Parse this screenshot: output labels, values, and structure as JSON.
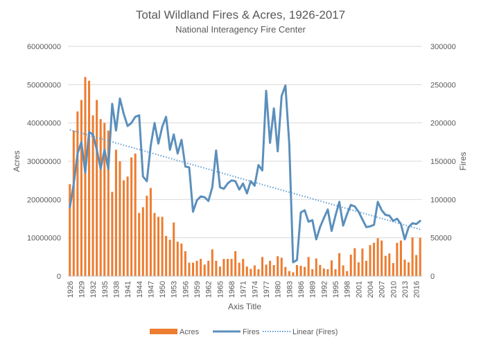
{
  "chart_data": {
    "type": "bar",
    "title": "Total Wildland Fires & Acres, 1926-2017",
    "subtitle": "National Interagency Fire Center",
    "xlabel": "Axis Title",
    "ylabel": "Acres",
    "y2label": "Fires",
    "ylim": [
      0,
      60000000
    ],
    "y2lim": [
      0,
      300000
    ],
    "y_ticks": [
      "0",
      "10000000",
      "20000000",
      "30000000",
      "40000000",
      "50000000",
      "60000000"
    ],
    "y2_ticks": [
      "0",
      "50000",
      "100000",
      "150000",
      "200000",
      "250000",
      "300000"
    ],
    "x_tick_labels": [
      "1926",
      "1929",
      "1932",
      "1935",
      "1938",
      "1941",
      "1944",
      "1947",
      "1950",
      "1953",
      "1956",
      "1959",
      "1962",
      "1965",
      "1968",
      "1971",
      "1974",
      "1977",
      "1980",
      "1983",
      "1986",
      "1989",
      "1992",
      "1995",
      "1998",
      "2001",
      "2004",
      "2007",
      "2010",
      "2013",
      "2016"
    ],
    "grid": true,
    "legend_position": "bottom",
    "colors": {
      "acres": "#ed7d31",
      "fires": "#5b8fbc",
      "trend": "#5b9bd5",
      "grid": "#d9d9d9",
      "text": "#595959"
    },
    "x": [
      1926,
      1927,
      1928,
      1929,
      1930,
      1931,
      1932,
      1933,
      1934,
      1935,
      1936,
      1937,
      1938,
      1939,
      1940,
      1941,
      1942,
      1943,
      1944,
      1945,
      1946,
      1947,
      1948,
      1949,
      1950,
      1951,
      1952,
      1953,
      1954,
      1955,
      1956,
      1957,
      1958,
      1959,
      1960,
      1961,
      1962,
      1963,
      1964,
      1965,
      1966,
      1967,
      1968,
      1969,
      1970,
      1971,
      1972,
      1973,
      1974,
      1975,
      1976,
      1977,
      1978,
      1979,
      1980,
      1981,
      1982,
      1983,
      1984,
      1985,
      1986,
      1987,
      1988,
      1989,
      1990,
      1991,
      1992,
      1993,
      1994,
      1995,
      1996,
      1997,
      1998,
      1999,
      2000,
      2001,
      2002,
      2003,
      2004,
      2005,
      2006,
      2007,
      2008,
      2009,
      2010,
      2011,
      2012,
      2013,
      2014,
      2015,
      2016,
      2017
    ],
    "series": [
      {
        "name": "Acres",
        "type": "bar",
        "axis": "left",
        "values": [
          24000000,
          38000000,
          43000000,
          46000000,
          52000000,
          51000000,
          42000000,
          46000000,
          41000000,
          40000000,
          38000000,
          22000000,
          33000000,
          30000000,
          25000000,
          26000000,
          31000000,
          32000000,
          16500000,
          18000000,
          21000000,
          23000000,
          16500000,
          15500000,
          15500000,
          10500000,
          9500000,
          14000000,
          9000000,
          8500000,
          6500000,
          3500000,
          3500000,
          4000000,
          4500000,
          3000000,
          4000000,
          7000000,
          4000000,
          2500000,
          4500000,
          4500000,
          4500000,
          6500000,
          3500000,
          4500000,
          2500000,
          1900000,
          2800000,
          1800000,
          5000000,
          3000000,
          4000000,
          2900000,
          5200000,
          4800000,
          2400000,
          1300000,
          1000000,
          2900000,
          2700000,
          2400000,
          5000000,
          1800000,
          4600000,
          2900000,
          2000000,
          1800000,
          4100000,
          1800000,
          6000000,
          2800000,
          1300000,
          5600000,
          7300000,
          3600000,
          7200000,
          4000000,
          8100000,
          8700000,
          9900000,
          9300000,
          5300000,
          5900000,
          3400000,
          8700000,
          9300000,
          4300000,
          3600000,
          10100000,
          5500000,
          10000000
        ]
      },
      {
        "name": "Fires",
        "type": "line",
        "axis": "right",
        "values": [
          90000,
          120000,
          160000,
          175000,
          135000,
          188000,
          185000,
          165000,
          140000,
          165000,
          140000,
          225000,
          190000,
          232000,
          212000,
          196000,
          200000,
          208000,
          210000,
          130000,
          124000,
          170000,
          200000,
          173000,
          195000,
          208000,
          165000,
          185000,
          160000,
          178000,
          143000,
          142000,
          84000,
          99000,
          104000,
          103000,
          98000,
          116000,
          164000,
          116000,
          114000,
          121000,
          125000,
          124000,
          113000,
          121000,
          108000,
          124000,
          118000,
          145000,
          138000,
          242000,
          174000,
          219000,
          163000,
          235000,
          249000,
          172000,
          18000,
          21000,
          83000,
          86000,
          71000,
          73000,
          48000,
          64000,
          76000,
          87000,
          59000,
          79000,
          97000,
          66000,
          81000,
          93000,
          91000,
          84000,
          74000,
          64000,
          65000,
          67000,
          97000,
          86000,
          80000,
          79000,
          72000,
          75000,
          68000,
          48000,
          64000,
          69000,
          68000,
          72000
        ]
      },
      {
        "name": "Linear (Fires)",
        "type": "trendline",
        "axis": "right",
        "values_at_ends": [
          191000,
          61000
        ]
      }
    ]
  }
}
